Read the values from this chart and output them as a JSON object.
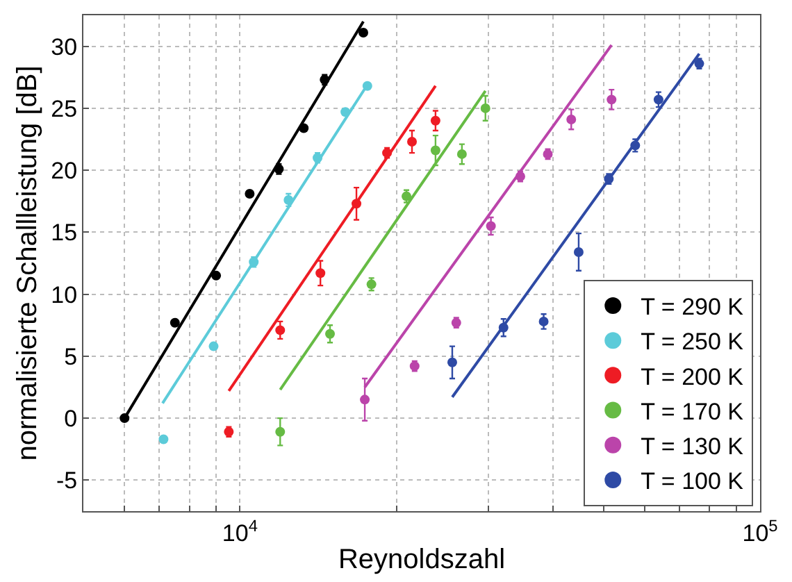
{
  "chart_data": {
    "type": "scatter",
    "xlabel": "Reynoldszahl",
    "ylabel": "normalisierte Schallleistung [dB]",
    "log": "x",
    "xlim": [
      5000,
      100000
    ],
    "ylim": [
      -7.5,
      32.5
    ],
    "xticks": [
      {
        "value": 6000,
        "label": null
      },
      {
        "value": 7000,
        "label": null
      },
      {
        "value": 8000,
        "label": null
      },
      {
        "value": 9000,
        "label": null
      },
      {
        "value": 10000,
        "label": "10$^{4}$"
      },
      {
        "value": 20000,
        "label": null
      },
      {
        "value": 30000,
        "label": null
      },
      {
        "value": 40000,
        "label": null
      },
      {
        "value": 50000,
        "label": null
      },
      {
        "value": 60000,
        "label": null
      },
      {
        "value": 70000,
        "label": null
      },
      {
        "value": 80000,
        "label": null
      },
      {
        "value": 90000,
        "label": null
      },
      {
        "value": 100000,
        "label": "10$^{5}$"
      }
    ],
    "yticks": [
      -5,
      0,
      5,
      10,
      15,
      20,
      25,
      30
    ],
    "grid": true,
    "legend": "bottom right",
    "series": [
      {
        "name": "T = 290 K",
        "color": "#000000",
        "marker": "circle",
        "x": [
          6000,
          7500,
          9000,
          10440,
          11880,
          13265,
          14550,
          17270
        ],
        "values": [
          0,
          7.7,
          11.5,
          18.1,
          20.1,
          23.4,
          27.3,
          31.1
        ],
        "errors": [
          null,
          null,
          null,
          null,
          0.4,
          null,
          0.4,
          null
        ]
      },
      {
        "name": "T = 250 K",
        "color": "#5ccbd9",
        "marker": "circle",
        "x": [
          7130,
          8900,
          10630,
          12400,
          14100,
          15950,
          17580
        ],
        "values": [
          -1.7,
          5.8,
          12.6,
          17.6,
          21.0,
          24.7,
          26.8
        ],
        "errors": [
          null,
          null,
          0.4,
          0.5,
          0.4,
          null,
          null
        ]
      },
      {
        "name": "T = 200 K",
        "color": "#ee1c24",
        "marker": "circle",
        "x": [
          9520,
          11950,
          14280,
          16750,
          19180,
          21420,
          23770
        ],
        "values": [
          -1.1,
          7.1,
          11.7,
          17.3,
          21.4,
          22.3,
          24.0
        ],
        "errors": [
          0.4,
          0.7,
          1.0,
          1.3,
          0.4,
          0.9,
          0.8
        ]
      },
      {
        "name": "T = 170 K",
        "color": "#66bb44",
        "marker": "circle",
        "x": [
          11950,
          14900,
          17900,
          20900,
          23770,
          26720,
          29650
        ],
        "values": [
          -1.1,
          6.8,
          10.8,
          17.9,
          21.6,
          21.3,
          25.0
        ],
        "errors": [
          1.1,
          0.7,
          0.5,
          0.5,
          1.2,
          0.8,
          1.0
        ]
      },
      {
        "name": "T = 130 K",
        "color": "#bb44aa",
        "marker": "circle",
        "x": [
          17380,
          21670,
          26060,
          30380,
          34600,
          39080,
          43350,
          51820
        ],
        "values": [
          1.5,
          4.2,
          7.7,
          15.5,
          19.5,
          21.3,
          24.1,
          25.7
        ],
        "errors": [
          1.7,
          0.4,
          0.4,
          0.7,
          0.4,
          0.4,
          0.8,
          0.8
        ]
      },
      {
        "name": "T = 100 K",
        "color": "#2e4aa5",
        "marker": "circle",
        "x": [
          25600,
          32120,
          38370,
          44800,
          51200,
          57540,
          63800,
          76400
        ],
        "values": [
          4.5,
          7.3,
          7.8,
          13.4,
          19.3,
          22.0,
          25.7,
          28.6
        ],
        "errors": [
          1.3,
          0.7,
          0.6,
          1.5,
          0.4,
          0.5,
          0.6,
          0.4
        ]
      },
      {
        "type": "line",
        "color": "#000000",
        "x": [
          6000,
          17270
        ],
        "values": [
          0,
          32.0
        ]
      },
      {
        "type": "line",
        "color": "#5ccbd9",
        "x": [
          7100,
          17580
        ],
        "values": [
          1.2,
          26.9
        ]
      },
      {
        "type": "line",
        "color": "#ee1c24",
        "x": [
          9520,
          23770
        ],
        "values": [
          2.2,
          26.8
        ]
      },
      {
        "type": "line",
        "color": "#66bb44",
        "x": [
          11950,
          29650
        ],
        "values": [
          2.3,
          26.4
        ]
      },
      {
        "type": "line",
        "color": "#bb44aa",
        "x": [
          17380,
          51820
        ],
        "values": [
          2.5,
          30.1
        ]
      },
      {
        "type": "line",
        "color": "#2e4aa5",
        "x": [
          25600,
          76400
        ],
        "values": [
          1.7,
          29.4
        ]
      }
    ]
  }
}
